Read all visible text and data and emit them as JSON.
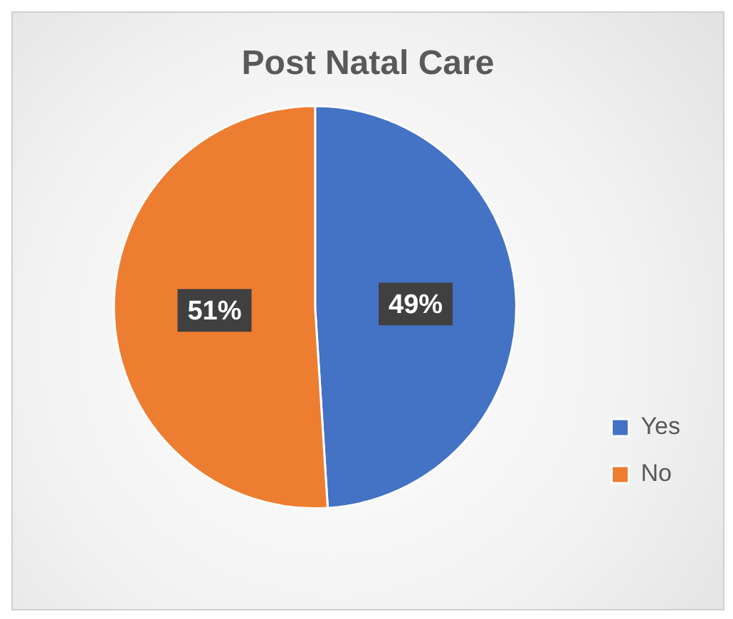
{
  "chart_data": {
    "type": "pie",
    "title": "Post Natal Care",
    "categories": [
      "Yes",
      "No"
    ],
    "values": [
      49,
      51
    ],
    "colors": [
      "#4472c4",
      "#ed7d31"
    ],
    "value_labels": [
      "49%",
      "51%"
    ],
    "legend": "right"
  }
}
